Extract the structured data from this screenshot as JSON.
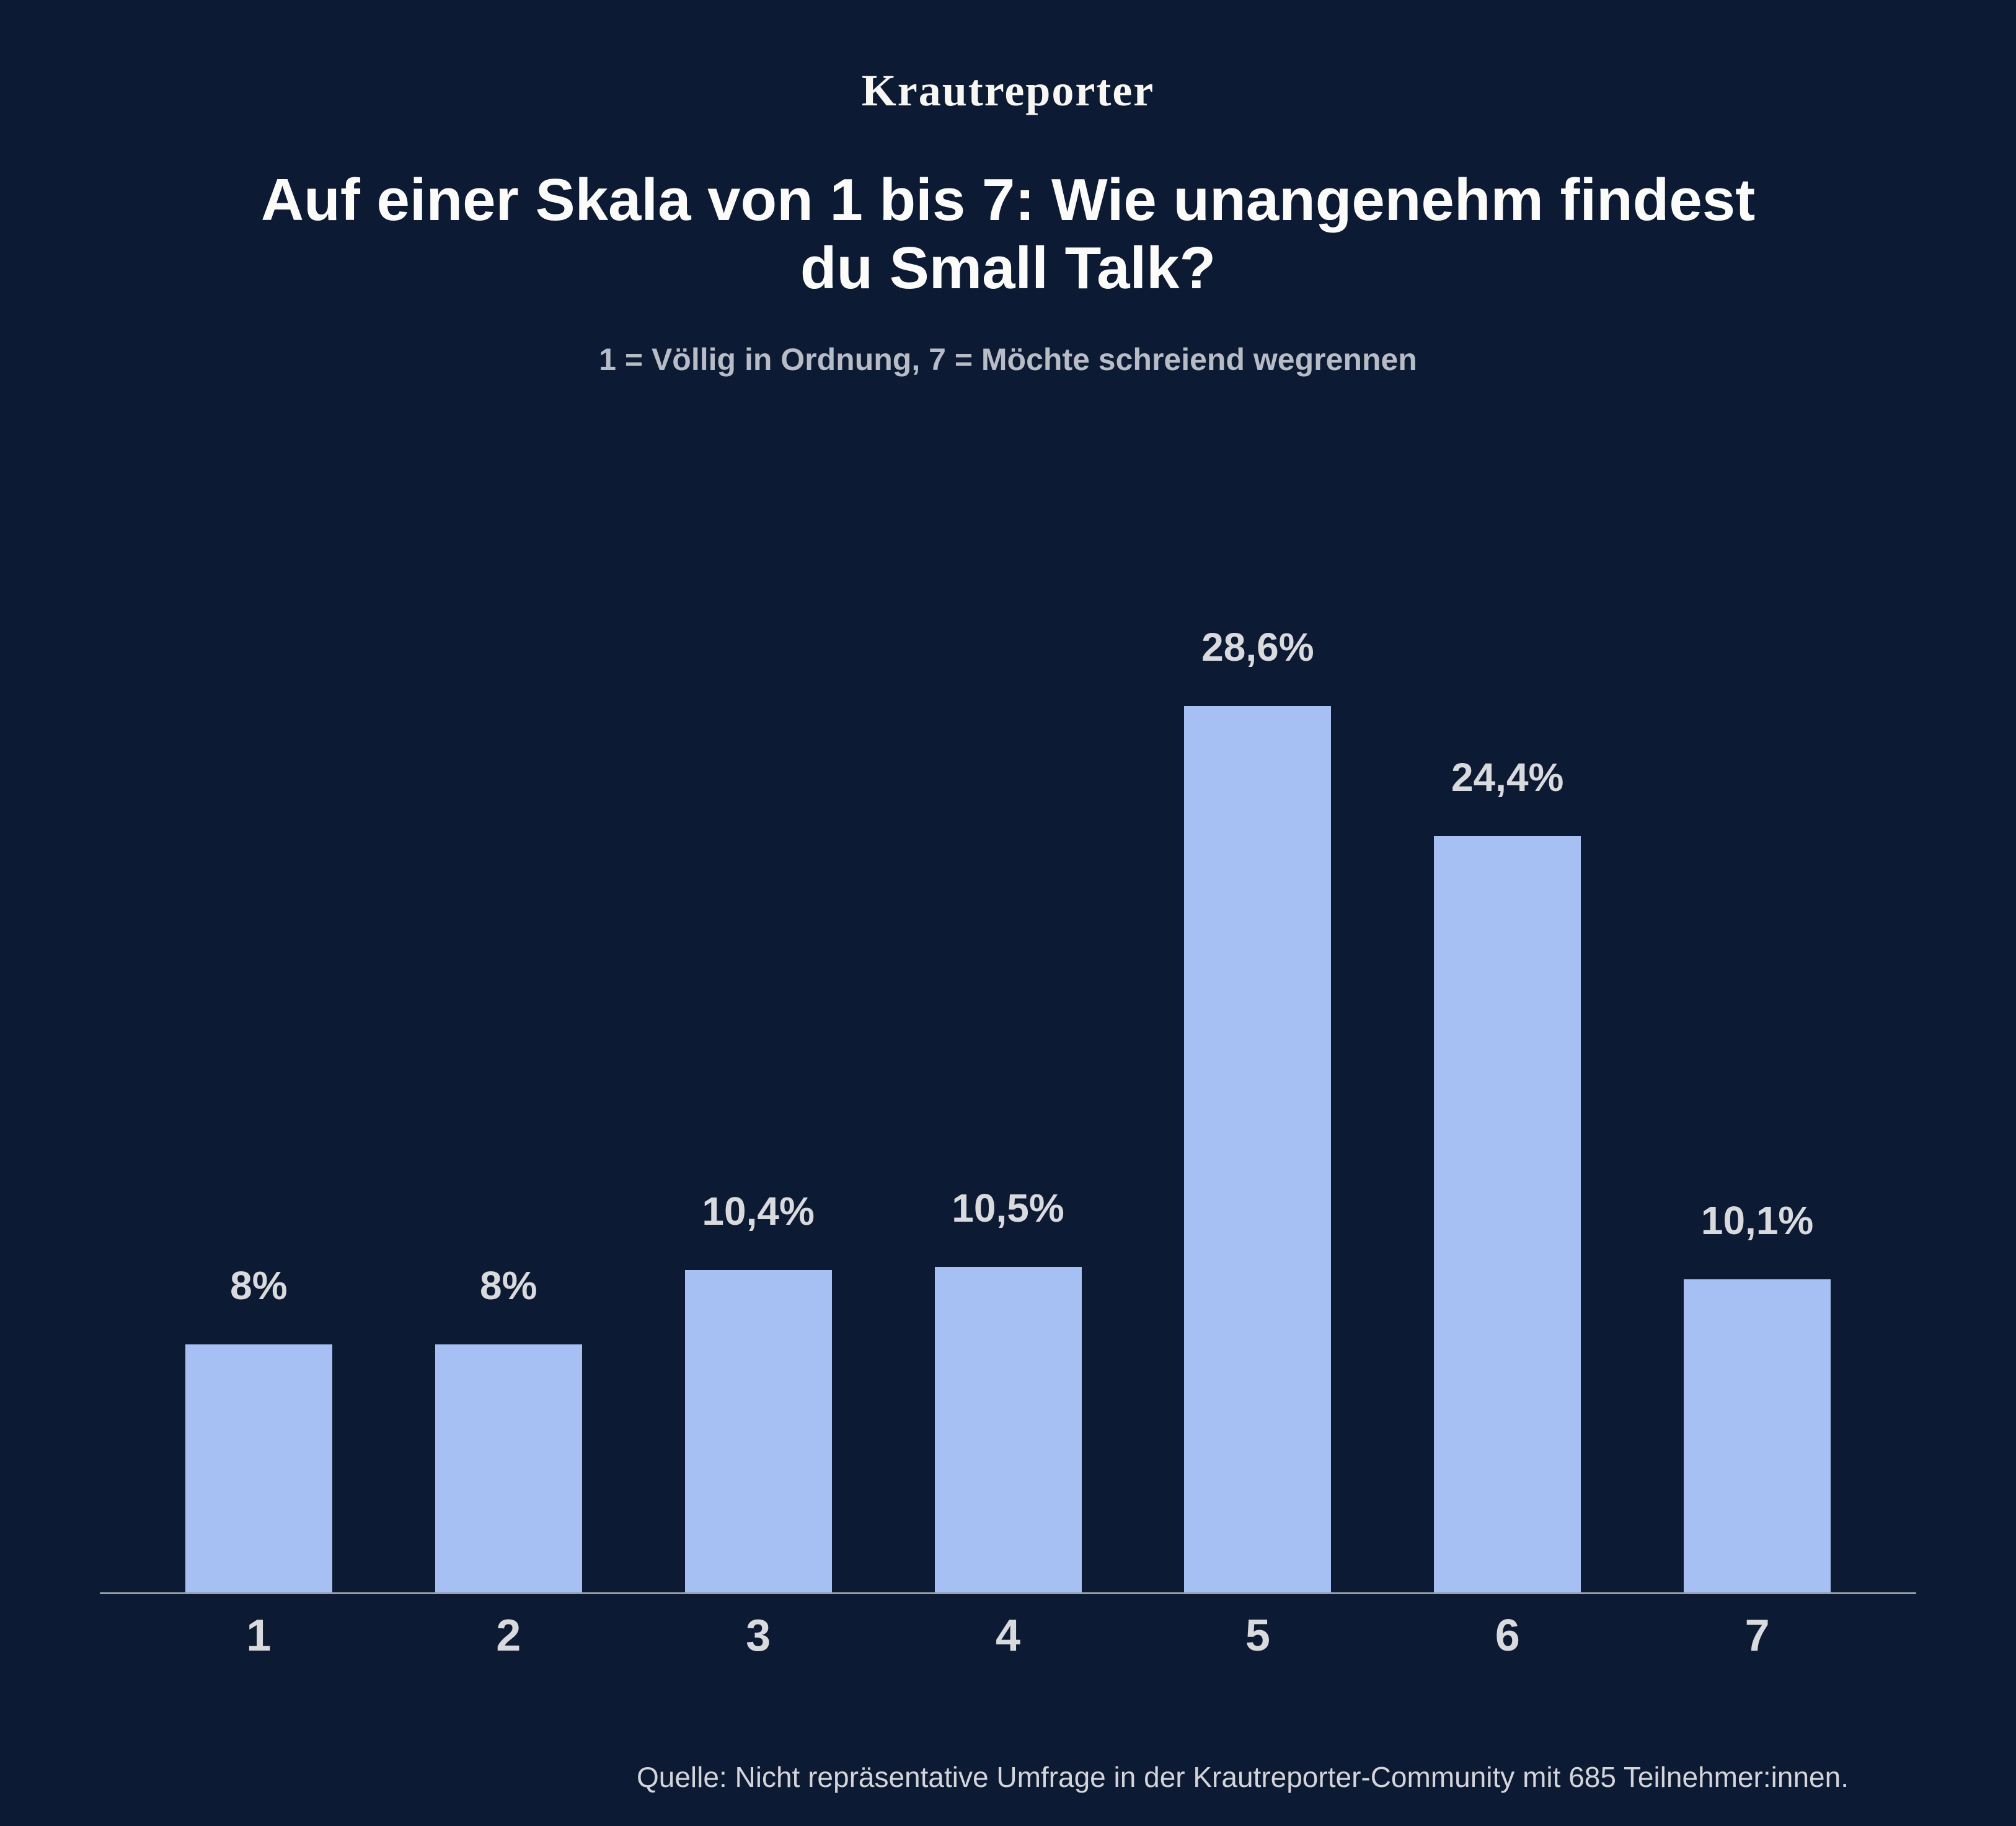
{
  "page": {
    "background_color": "#0d1a33"
  },
  "logo": {
    "text": "Krautreporter"
  },
  "header": {
    "title": "Auf einer Skala von 1 bis 7: Wie unangenehm findest du Small Talk?",
    "subtitle": "1 = Völlig in Ordnung, 7 = Möchte schreiend wegrennen"
  },
  "footer": {
    "source": "Quelle: Nicht repräsentative Umfrage in der Krautreporter-Community mit 685 Teilnehmer:innen."
  },
  "chart_data": {
    "type": "bar",
    "title": "Auf einer Skala von 1 bis 7: Wie unangenehm findest du Small Talk?",
    "subtitle": "1 = Völlig in Ordnung, 7 = Möchte schreiend wegrennen",
    "categories": [
      "1",
      "2",
      "3",
      "4",
      "5",
      "6",
      "7"
    ],
    "values": [
      8,
      8,
      10.4,
      10.5,
      28.6,
      24.4,
      10.1
    ],
    "value_labels": [
      "8%",
      "8%",
      "10,4%",
      "10,5%",
      "28,6%",
      "24,4%",
      "10,1%"
    ],
    "xlabel": "",
    "ylabel": "",
    "ylim": [
      0,
      30
    ],
    "grid": false,
    "legend": false,
    "bar_color": "#a6c0f4",
    "value_label_color": "#d9dade",
    "axis_label_color": "#d9dade",
    "baseline_color": "#9aa0ab",
    "source": "Quelle: Nicht repräsentative Umfrage in der Krautreporter-Community mit 685 Teilnehmer:innen."
  }
}
